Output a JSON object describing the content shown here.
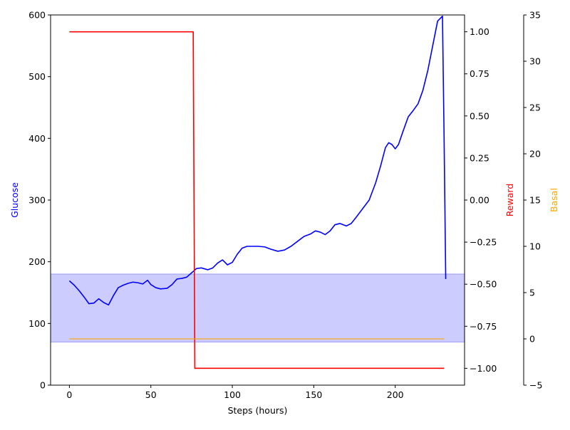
{
  "chart_data": {
    "type": "line",
    "xlabel": "Steps (hours)",
    "xlim": [
      -11.55,
      242.55
    ],
    "xticks": [
      0,
      50,
      100,
      150,
      200
    ],
    "target_range": {
      "low": 70,
      "high": 180,
      "color": "#ccccff"
    },
    "axes": [
      {
        "id": "glucose",
        "label": "Glucose",
        "color": "#0000ff",
        "side": "left",
        "ylim": [
          0,
          600
        ],
        "ticks": [
          0,
          100,
          200,
          300,
          400,
          500,
          600
        ],
        "tick_labels": [
          "0",
          "100",
          "200",
          "300",
          "400",
          "500",
          "600"
        ]
      },
      {
        "id": "reward",
        "label": "Reward",
        "color": "#ff0000",
        "side": "right",
        "ylim": [
          -1.1,
          1.1
        ],
        "ticks": [
          -1.0,
          -0.75,
          -0.5,
          -0.25,
          0.0,
          0.25,
          0.5,
          0.75,
          1.0
        ],
        "tick_labels": [
          "−1.00",
          "−0.75",
          "−0.50",
          "−0.25",
          "0.00",
          "0.25",
          "0.50",
          "0.75",
          "1.00"
        ]
      },
      {
        "id": "basal",
        "label": "Basal",
        "color": "#ffa500",
        "side": "right-outer",
        "ylim": [
          -5,
          35
        ],
        "ticks": [
          -5,
          0,
          5,
          10,
          15,
          20,
          25,
          30,
          35
        ],
        "tick_labels": [
          "−5",
          "0",
          "5",
          "10",
          "15",
          "20",
          "25",
          "30",
          "35"
        ]
      }
    ],
    "series": [
      {
        "axis": "glucose",
        "color": "#0000ff",
        "x": [
          0,
          3,
          6,
          9,
          12,
          15,
          18,
          21,
          24,
          27,
          30,
          33,
          36,
          39,
          42,
          45,
          48,
          50,
          53,
          56,
          60,
          63,
          66,
          69,
          72,
          75,
          78,
          81,
          85,
          88,
          91,
          94,
          97,
          100,
          103,
          106,
          109,
          112,
          116,
          120,
          124,
          128,
          132,
          136,
          140,
          144,
          148,
          151,
          154,
          157,
          160,
          163,
          166,
          170,
          173,
          176,
          180,
          184,
          188,
          191,
          194,
          196,
          198,
          200,
          202,
          205,
          208,
          211,
          214,
          217,
          220,
          223,
          226,
          229,
          230,
          231
        ],
        "y": [
          169,
          162,
          153,
          143,
          132,
          133,
          140,
          134,
          130,
          145,
          158,
          162,
          165,
          167,
          166,
          164,
          170,
          163,
          158,
          156,
          157,
          163,
          172,
          173,
          175,
          182,
          189,
          190,
          187,
          190,
          198,
          203,
          195,
          199,
          212,
          222,
          225,
          225,
          225,
          224,
          220,
          217,
          219,
          225,
          233,
          241,
          245,
          250,
          248,
          244,
          250,
          260,
          262,
          258,
          262,
          272,
          286,
          300,
          328,
          355,
          385,
          393,
          390,
          383,
          390,
          413,
          435,
          445,
          456,
          478,
          510,
          550,
          590,
          598,
          400,
          172
        ]
      },
      {
        "axis": "reward",
        "color": "#ff0000",
        "x": [
          0,
          76,
          77,
          230
        ],
        "y": [
          1.0,
          1.0,
          -1.0,
          -1.0
        ]
      },
      {
        "axis": "basal",
        "color": "#ffa500",
        "x": [
          0,
          230
        ],
        "y": [
          0,
          0
        ]
      }
    ]
  }
}
